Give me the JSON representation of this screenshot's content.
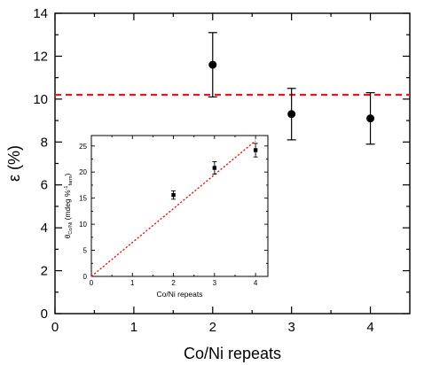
{
  "chart_data": [
    {
      "type": "scatter",
      "title": "",
      "xlabel": "Co/Ni repeats",
      "ylabel": "ε (%)",
      "xlim": [
        0,
        4.5
      ],
      "ylim": [
        0,
        14
      ],
      "xticks": [
        0,
        1,
        2,
        3,
        4
      ],
      "yticks": [
        0,
        2,
        4,
        6,
        8,
        10,
        12,
        14
      ],
      "grid": false,
      "series": [
        {
          "marker": "filled-circle",
          "color": "#000000",
          "x": [
            2,
            3,
            4
          ],
          "y": [
            11.6,
            9.3,
            9.1
          ],
          "yerr": [
            1.5,
            1.2,
            1.2
          ]
        }
      ],
      "reference_line": {
        "orientation": "horizontal",
        "y": 10.2,
        "style": "dashed",
        "color": "#e41a1c"
      }
    },
    {
      "type": "scatter",
      "title": "",
      "xlabel": "Co/Ni repeats",
      "ylabel": {
        "pre": "θ",
        "sub1": "Co/Ni",
        "mid": " (mdeg %",
        "sup": "-1",
        "sub2": "farm",
        "post": ")"
      },
      "xlim": [
        0,
        4.3
      ],
      "ylim": [
        0,
        27
      ],
      "xticks": [
        0,
        1,
        2,
        3,
        4
      ],
      "yticks": [
        0,
        5,
        10,
        15,
        20,
        25
      ],
      "grid": false,
      "series": [
        {
          "marker": "filled-square",
          "color": "#000000",
          "x": [
            2,
            3,
            4
          ],
          "y": [
            15.6,
            20.8,
            24.2
          ],
          "yerr": [
            0.8,
            1.2,
            1.3
          ]
        }
      ],
      "reference_line": {
        "orientation": "line",
        "x": [
          0,
          4
        ],
        "y": [
          0,
          26
        ],
        "style": "dotted",
        "color": "#e41a1c"
      }
    }
  ]
}
